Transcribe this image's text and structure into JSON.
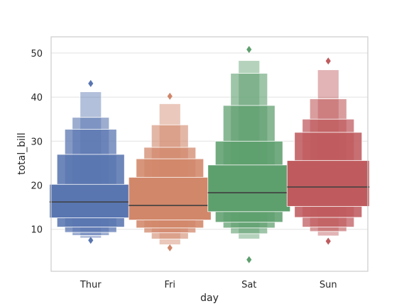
{
  "chart_data": {
    "type": "boxen",
    "xlabel": "day",
    "ylabel": "total_bill",
    "categories": [
      "Thur",
      "Fri",
      "Sat",
      "Sun"
    ],
    "ylim": [
      0,
      54
    ],
    "yticks": [
      10,
      20,
      30,
      40,
      50
    ],
    "grid": true,
    "colors": [
      "#5a76b1",
      "#d1876a",
      "#5e9f6e",
      "#bf5b5e"
    ],
    "series": [
      {
        "category": "Thur",
        "median": 16.2,
        "boxes": [
          [
            12.6,
            20.2
          ],
          [
            10.5,
            27.0
          ],
          [
            9.3,
            32.7
          ],
          [
            8.6,
            35.4
          ],
          [
            8.0,
            41.2
          ]
        ],
        "outliers": [
          43.1,
          7.5
        ]
      },
      {
        "category": "Fri",
        "median": 15.4,
        "boxes": [
          [
            12.1,
            21.8
          ],
          [
            10.3,
            26.0
          ],
          [
            9.2,
            28.6
          ],
          [
            7.8,
            33.7
          ],
          [
            6.5,
            38.5
          ]
        ],
        "outliers": [
          40.2,
          5.8
        ]
      },
      {
        "category": "Sat",
        "median": 18.3,
        "boxes": [
          [
            14.0,
            24.6
          ],
          [
            11.6,
            30.0
          ],
          [
            10.3,
            38.1
          ],
          [
            9.0,
            45.4
          ],
          [
            7.8,
            48.3
          ]
        ],
        "outliers": [
          50.8,
          3.1
        ]
      },
      {
        "category": "Sun",
        "median": 19.6,
        "boxes": [
          [
            15.2,
            25.6
          ],
          [
            12.7,
            32.0
          ],
          [
            10.5,
            35.0
          ],
          [
            9.5,
            39.6
          ],
          [
            8.5,
            46.2
          ]
        ],
        "outliers": [
          48.2,
          7.3
        ]
      }
    ]
  }
}
